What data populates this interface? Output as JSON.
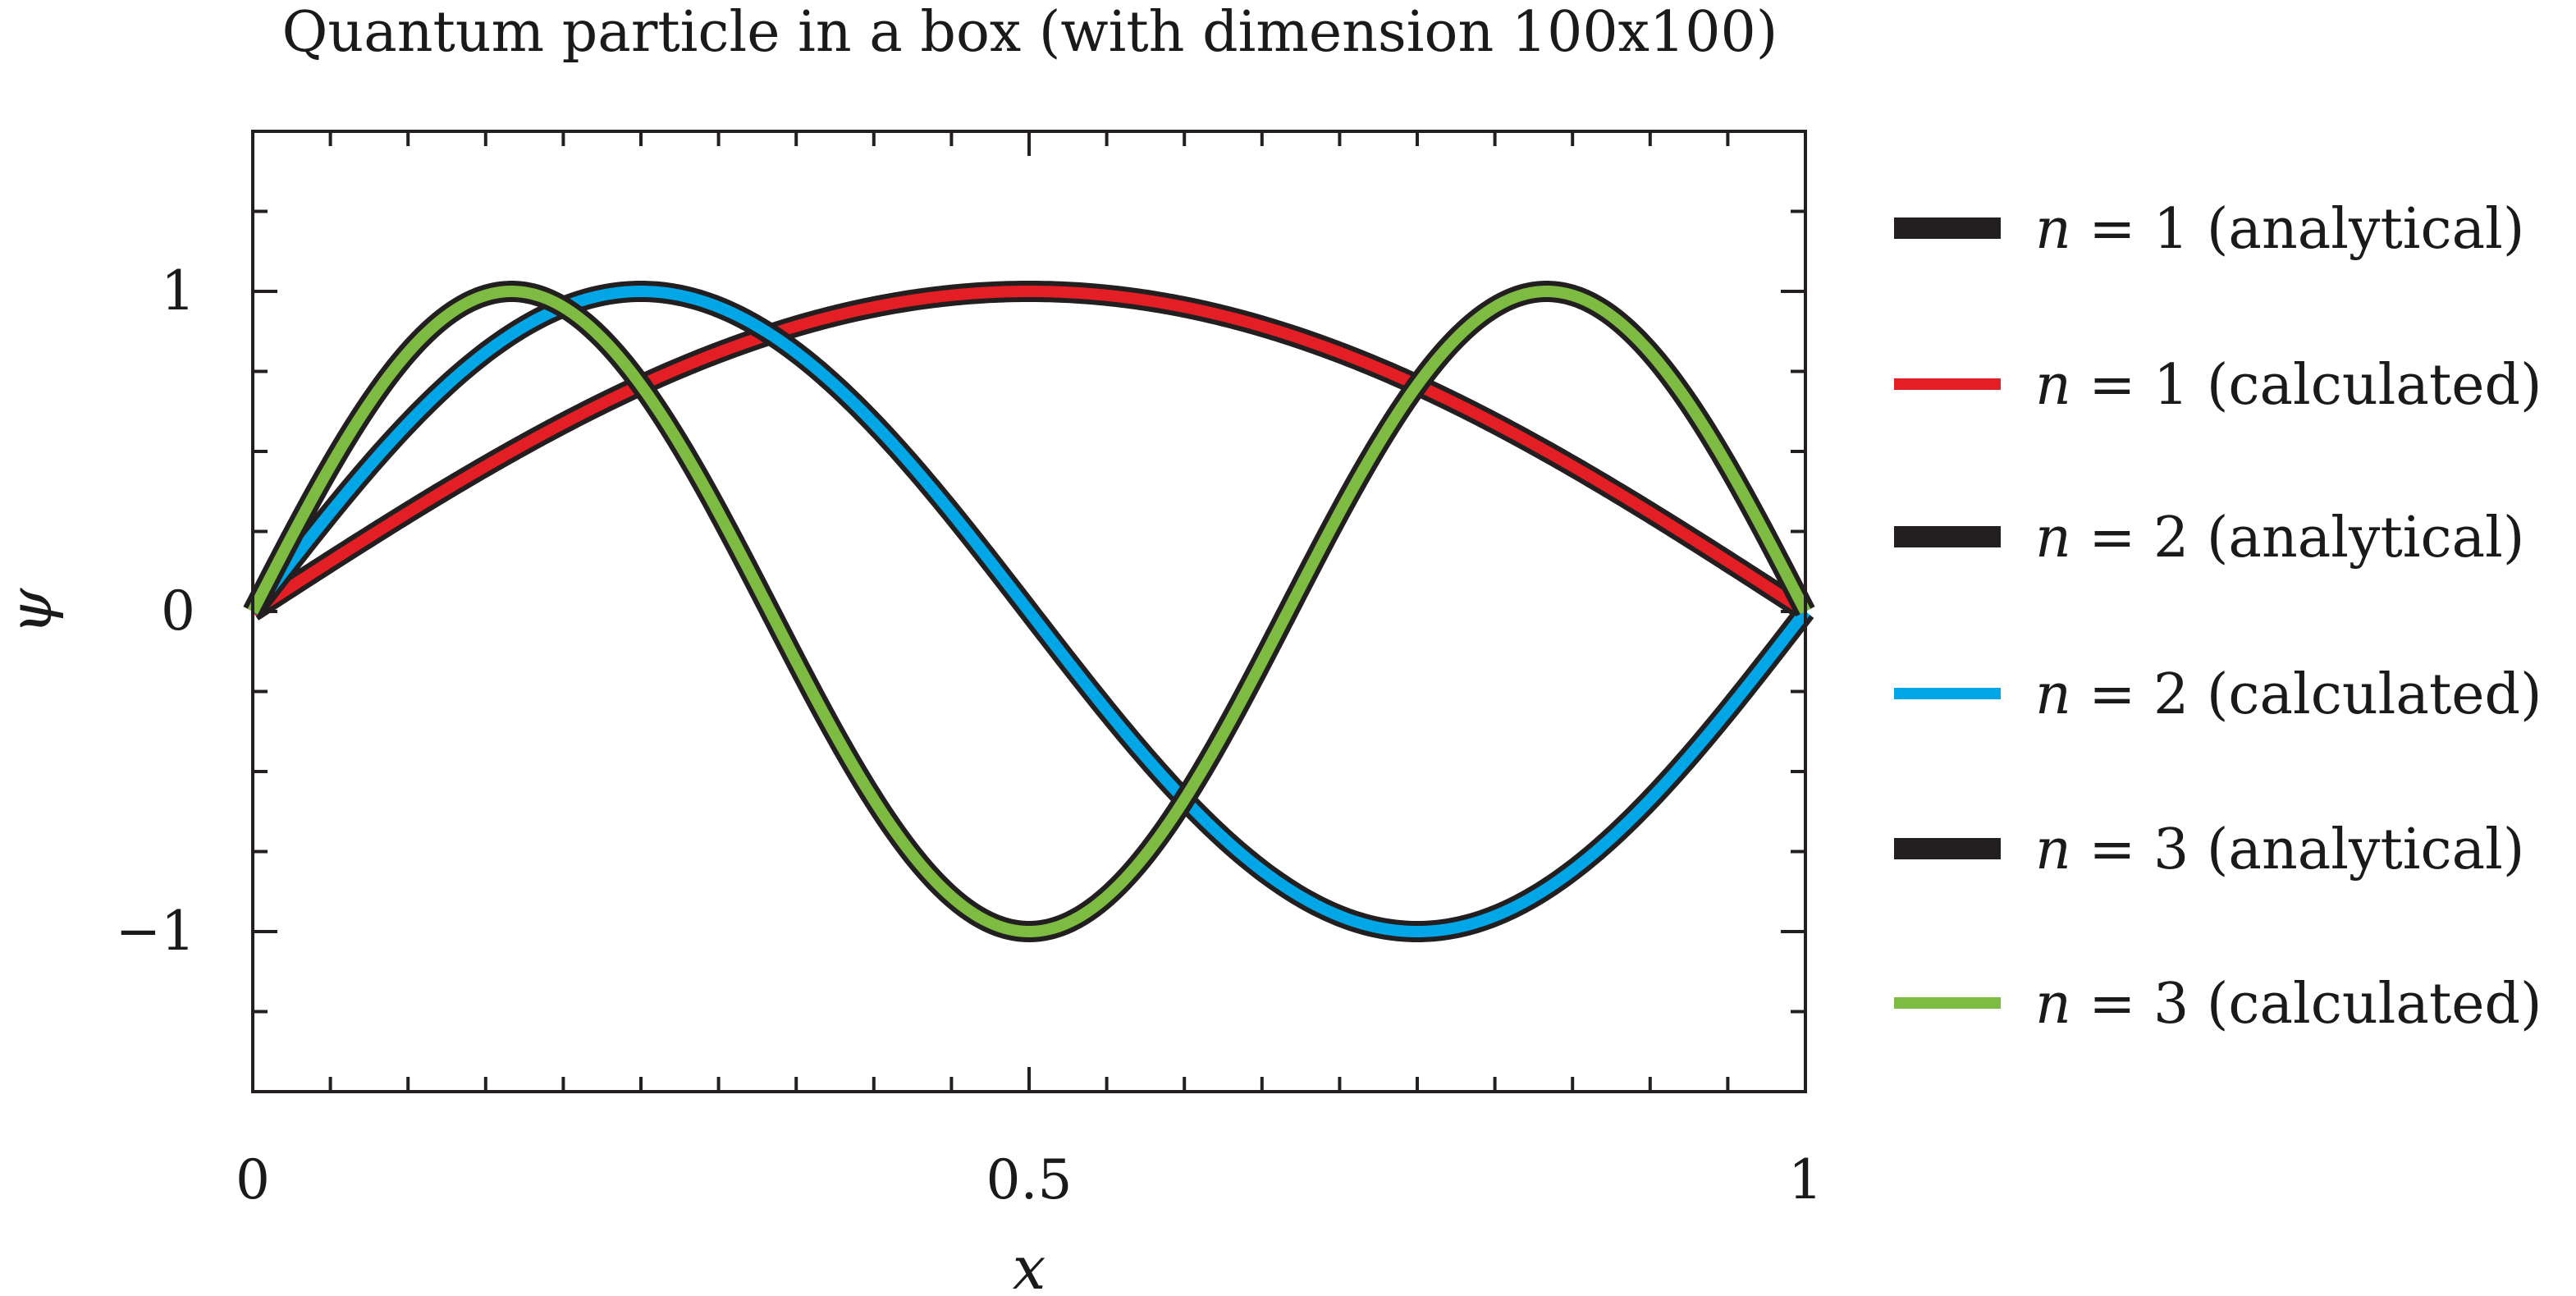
{
  "chart_data": {
    "type": "line",
    "title": "Quantum particle in a box (with dimension 100x100)",
    "xlabel": "x",
    "ylabel": "ψ",
    "xlim": [
      0,
      1
    ],
    "ylim": [
      -1.5,
      1.5
    ],
    "x_ticks": [
      0,
      0.5,
      1
    ],
    "x_tick_labels": [
      "0",
      "0.5",
      "1"
    ],
    "y_ticks": [
      -1,
      0,
      1
    ],
    "y_tick_labels": [
      "−1",
      "0",
      "1"
    ],
    "minor_x_step": 0.05,
    "minor_y_step": 0.25,
    "grid": false,
    "legend_position": "right",
    "series": [
      {
        "name": "n = 1 (analytical)",
        "n": 1,
        "kind": "analytical",
        "color": "#231f20",
        "x": [
          0,
          0.1,
          0.2,
          0.3,
          0.4,
          0.5,
          0.6,
          0.7,
          0.8,
          0.9,
          1
        ],
        "values": [
          0,
          0.309,
          0.588,
          0.809,
          0.951,
          1,
          0.951,
          0.809,
          0.588,
          0.309,
          0
        ]
      },
      {
        "name": "n = 1 (calculated)",
        "n": 1,
        "kind": "calculated",
        "color": "#e31e24",
        "x": [
          0,
          0.1,
          0.2,
          0.3,
          0.4,
          0.5,
          0.6,
          0.7,
          0.8,
          0.9,
          1
        ],
        "values": [
          0,
          0.309,
          0.588,
          0.809,
          0.951,
          1,
          0.951,
          0.809,
          0.588,
          0.309,
          0
        ]
      },
      {
        "name": "n = 2 (analytical)",
        "n": 2,
        "kind": "analytical",
        "color": "#231f20",
        "x": [
          0,
          0.125,
          0.25,
          0.375,
          0.5,
          0.625,
          0.75,
          0.875,
          1
        ],
        "values": [
          0,
          0.707,
          1,
          0.707,
          0,
          -0.707,
          -1,
          -0.707,
          0
        ]
      },
      {
        "name": "n = 2 (calculated)",
        "n": 2,
        "kind": "calculated",
        "color": "#00a6e6",
        "x": [
          0,
          0.125,
          0.25,
          0.375,
          0.5,
          0.625,
          0.75,
          0.875,
          1
        ],
        "values": [
          0,
          0.707,
          1,
          0.707,
          0,
          -0.707,
          -1,
          -0.707,
          0
        ]
      },
      {
        "name": "n = 3 (analytical)",
        "n": 3,
        "kind": "analytical",
        "color": "#231f20",
        "x": [
          0,
          0.083,
          0.167,
          0.25,
          0.333,
          0.417,
          0.5,
          0.583,
          0.667,
          0.75,
          0.833,
          0.917,
          1
        ],
        "values": [
          0,
          0.707,
          1,
          0.707,
          0,
          -0.707,
          -1,
          -0.707,
          0,
          0.707,
          1,
          0.707,
          0
        ]
      },
      {
        "name": "n = 3 (calculated)",
        "n": 3,
        "kind": "calculated",
        "color": "#7dbb42",
        "x": [
          0,
          0.083,
          0.167,
          0.25,
          0.333,
          0.417,
          0.5,
          0.583,
          0.667,
          0.75,
          0.833,
          0.917,
          1
        ],
        "values": [
          0,
          0.707,
          1,
          0.707,
          0,
          -0.707,
          -1,
          -0.707,
          0,
          0.707,
          1,
          0.707,
          0
        ]
      }
    ],
    "legend": [
      {
        "prefix": "n",
        "rest": " = 1 (analytical)",
        "color": "#231f20"
      },
      {
        "prefix": "n",
        "rest": " = 1 (calculated)",
        "color": "#e31e24"
      },
      {
        "prefix": "n",
        "rest": " = 2 (analytical)",
        "color": "#231f20"
      },
      {
        "prefix": "n",
        "rest": " = 2 (calculated)",
        "color": "#00a6e6"
      },
      {
        "prefix": "n",
        "rest": " = 3 (analytical)",
        "color": "#231f20"
      },
      {
        "prefix": "n",
        "rest": " = 3 (calculated)",
        "color": "#7dbb42"
      }
    ]
  }
}
